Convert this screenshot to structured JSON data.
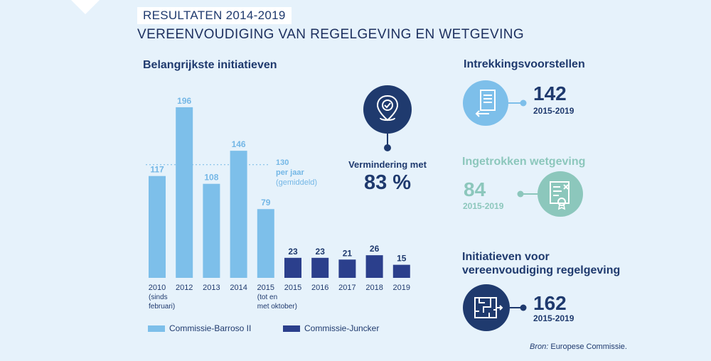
{
  "header": {
    "kicker": "RESULTATEN 2014-2019",
    "title": "VEREENVOUDIGING VAN REGELGEVING EN WETGEVING"
  },
  "chart_title": "Belangrijkste initiatieven",
  "chart_data": {
    "type": "bar",
    "categories": [
      [
        "2010",
        "(sinds",
        "februari)"
      ],
      [
        "2012"
      ],
      [
        "2013"
      ],
      [
        "2014"
      ],
      [
        "2015",
        "(tot en",
        "met oktober)"
      ],
      [
        "2015"
      ],
      [
        "2016"
      ],
      [
        "2017"
      ],
      [
        "2018"
      ],
      [
        "2019"
      ]
    ],
    "values": [
      117,
      196,
      108,
      146,
      79,
      23,
      23,
      21,
      26,
      15
    ],
    "series": [
      {
        "name": "Commissie-Barroso II",
        "indices": [
          0,
          1,
          2,
          3,
          4
        ],
        "color": "#7dbfea"
      },
      {
        "name": "Commissie-Juncker",
        "indices": [
          5,
          6,
          7,
          8,
          9
        ],
        "color": "#2b3f8c"
      }
    ],
    "average": {
      "value": 130,
      "label_lines": [
        "130",
        "per jaar"
      ],
      "note": "(gemiddeld)"
    },
    "ylim": [
      0,
      200
    ],
    "legend": "bottom"
  },
  "reduction": {
    "label": "Vermindering met",
    "value": "83 %"
  },
  "stats": [
    {
      "title": "Intrekkingsvoorstellen",
      "value": "142",
      "range": "2015-2019",
      "color": "#1f3a6e",
      "icon": "document-return-icon"
    },
    {
      "title": "Ingetrokken wetgeving",
      "value": "84",
      "range": "2015-2019",
      "color": "#8cc7bc",
      "icon": "certificate-cancel-icon"
    },
    {
      "title_lines": [
        "Initiatieven voor",
        "vereenvoudiging regelgeving"
      ],
      "value": "162",
      "range": "2015-2019",
      "color": "#1f3a6e",
      "icon": "maze-icon"
    }
  ],
  "source": {
    "label": "Bron:",
    "text": " Europese Commissie."
  },
  "colors": {
    "light_blue": "#7dbfea",
    "dark_blue": "#2b3f8c",
    "teal": "#8cc7bc",
    "navy": "#1f3a6e",
    "background": "#e6f2fb"
  }
}
